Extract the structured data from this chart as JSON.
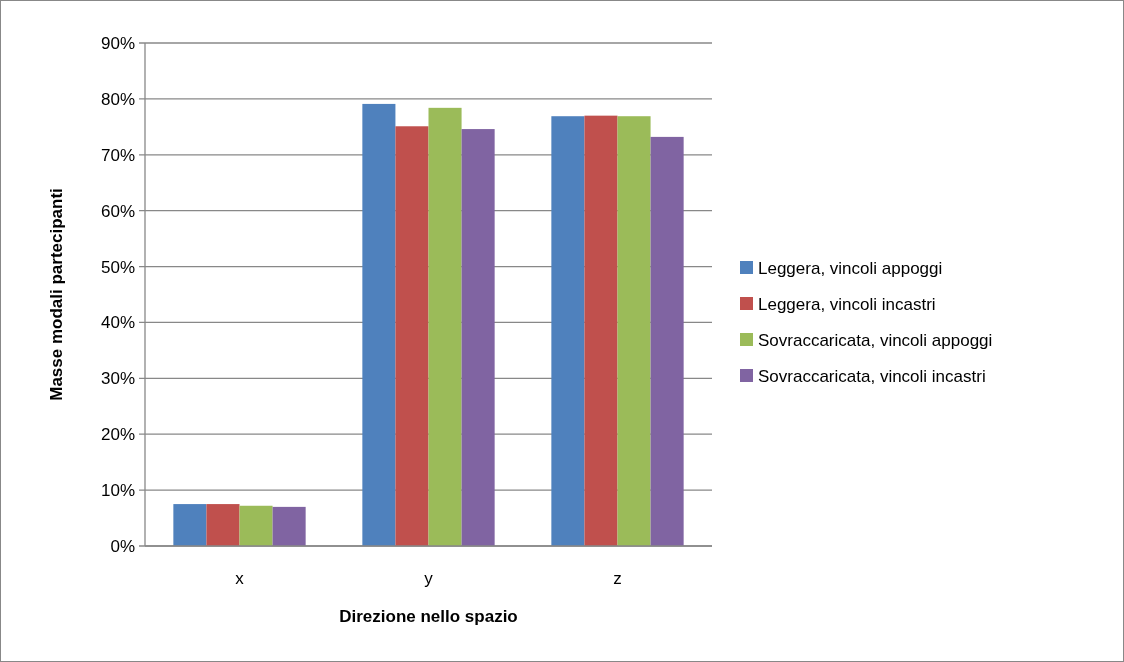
{
  "chart_data": {
    "type": "bar",
    "xlabel": "Direzione nello spazio",
    "ylabel": "Masse modali partecipanti",
    "categories": [
      "x",
      "y",
      "z"
    ],
    "series": [
      {
        "name": "Leggera, vincoli appoggi",
        "color": "#4f81bd",
        "values": [
          7.5,
          79.1,
          76.9
        ]
      },
      {
        "name": "Leggera, vincoli incastri",
        "color": "#c0504d",
        "values": [
          7.5,
          75.1,
          77.0
        ]
      },
      {
        "name": "Sovraccaricata, vincoli appoggi",
        "color": "#9bbb59",
        "values": [
          7.2,
          78.4,
          76.9
        ]
      },
      {
        "name": "Sovraccaricata, vincoli incastri",
        "color": "#8064a2",
        "values": [
          7.0,
          74.6,
          73.2
        ]
      }
    ],
    "ylim": [
      0,
      90
    ],
    "yticks": [
      {
        "value": 0,
        "label": "0%"
      },
      {
        "value": 10,
        "label": "10%"
      },
      {
        "value": 20,
        "label": "20%"
      },
      {
        "value": 30,
        "label": "30%"
      },
      {
        "value": 40,
        "label": "40%"
      },
      {
        "value": 50,
        "label": "50%"
      },
      {
        "value": 60,
        "label": "60%"
      },
      {
        "value": 70,
        "label": "70%"
      },
      {
        "value": 80,
        "label": "80%"
      },
      {
        "value": 90,
        "label": "90%"
      }
    ],
    "grid": "y",
    "legend": "right"
  }
}
